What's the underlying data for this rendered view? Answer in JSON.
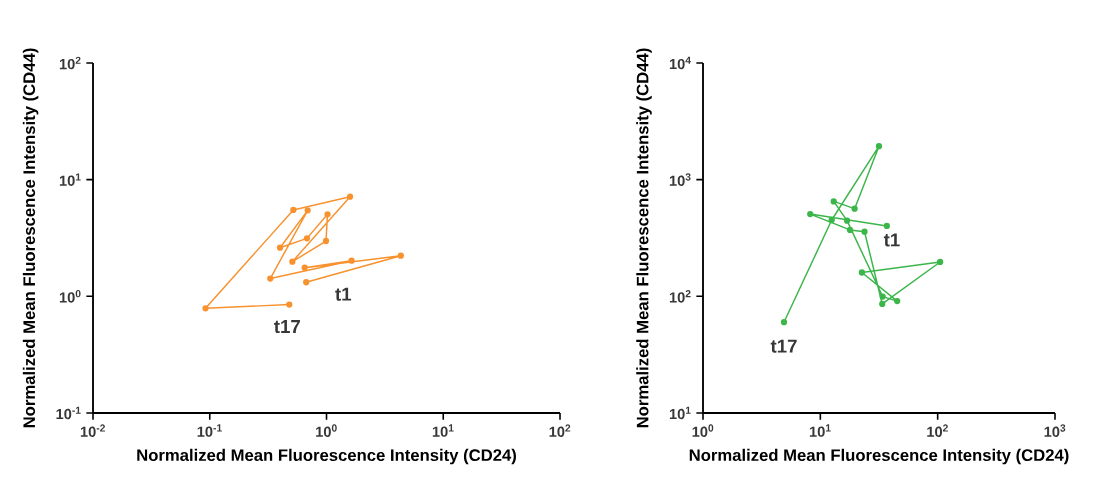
{
  "chart_data": [
    {
      "type": "line",
      "log": "xy",
      "marker": "circle",
      "line_style": "solid",
      "xlabel": "Normalized Mean Fluorescence Intensity (CD24)",
      "ylabel": "Normalized Mean Fluorescence Intensity (CD44)",
      "xlim": [
        0.01,
        100
      ],
      "ylim": [
        0.1,
        100
      ],
      "xticks": [
        {
          "value": 0.01,
          "label": "10$^{-2}$"
        },
        {
          "value": 0.1,
          "label": "10$^{-1}$"
        },
        {
          "value": 1,
          "label": "10$^{0}$"
        },
        {
          "value": 10,
          "label": "10$^{1}$"
        },
        {
          "value": 100,
          "label": "10$^{2}$"
        }
      ],
      "yticks": [
        {
          "value": 0.1,
          "label": "10$^{-1}$"
        },
        {
          "value": 1,
          "label": "10$^{0}$"
        },
        {
          "value": 10,
          "label": "10$^{1}$"
        },
        {
          "value": 100,
          "label": "10$^{2}$"
        }
      ],
      "series": [
        {
          "color": "#f7922e",
          "x": [
            0.67,
            4.33,
            0.65,
            1.64,
            0.33,
            0.69,
            0.4,
            0.68,
            1.02,
            0.99,
            0.51,
            1.59,
            0.52,
            0.092,
            0.48
          ],
          "values": [
            1.32,
            2.23,
            1.76,
            2.02,
            1.42,
            5.46,
            2.61,
            3.14,
            5.05,
            2.98,
            1.98,
            7.14,
            5.5,
            0.79,
            0.85
          ]
        }
      ],
      "annotations": [
        {
          "text": "t1",
          "x": 0.67,
          "y": 1.32
        },
        {
          "text": "t17",
          "x": 0.48,
          "y": 0.85
        }
      ]
    },
    {
      "type": "line",
      "log": "xy",
      "marker": "circle",
      "line_style": "solid",
      "xlabel": "Normalized Mean Fluorescence Intensity (CD24)",
      "ylabel": "Normalized Mean Fluorescence Intensity (CD44)",
      "xlim": [
        1,
        1000
      ],
      "ylim": [
        10,
        10000
      ],
      "xticks": [
        {
          "value": 1,
          "label": "10$^{0}$"
        },
        {
          "value": 10,
          "label": "10$^{1}$"
        },
        {
          "value": 100,
          "label": "10$^{2}$"
        },
        {
          "value": 1000,
          "label": "10$^{3}$"
        }
      ],
      "yticks": [
        {
          "value": 10,
          "label": "10$^{1}$"
        },
        {
          "value": 100,
          "label": "10$^{2}$"
        },
        {
          "value": 1000,
          "label": "10$^{3}$"
        },
        {
          "value": 10000,
          "label": "10$^{4}$"
        }
      ],
      "series": [
        {
          "color": "#3cb64a",
          "x": [
            36.9,
            8.2,
            17.9,
            23.8,
            33.7,
            105,
            22.6,
            45.2,
            34,
            16.9,
            13.0,
            19.6,
            31.6,
            12.5,
            4.9
          ],
          "values": [
            401,
            507,
            371,
            358,
            86,
            197,
            160,
            91,
            99.5,
            445,
            651,
            564,
            1936,
            451,
            60
          ]
        }
      ],
      "annotations": [
        {
          "text": "t1",
          "x": 36.9,
          "y": 401
        },
        {
          "text": "t17",
          "x": 4.9,
          "y": 60
        }
      ]
    }
  ]
}
